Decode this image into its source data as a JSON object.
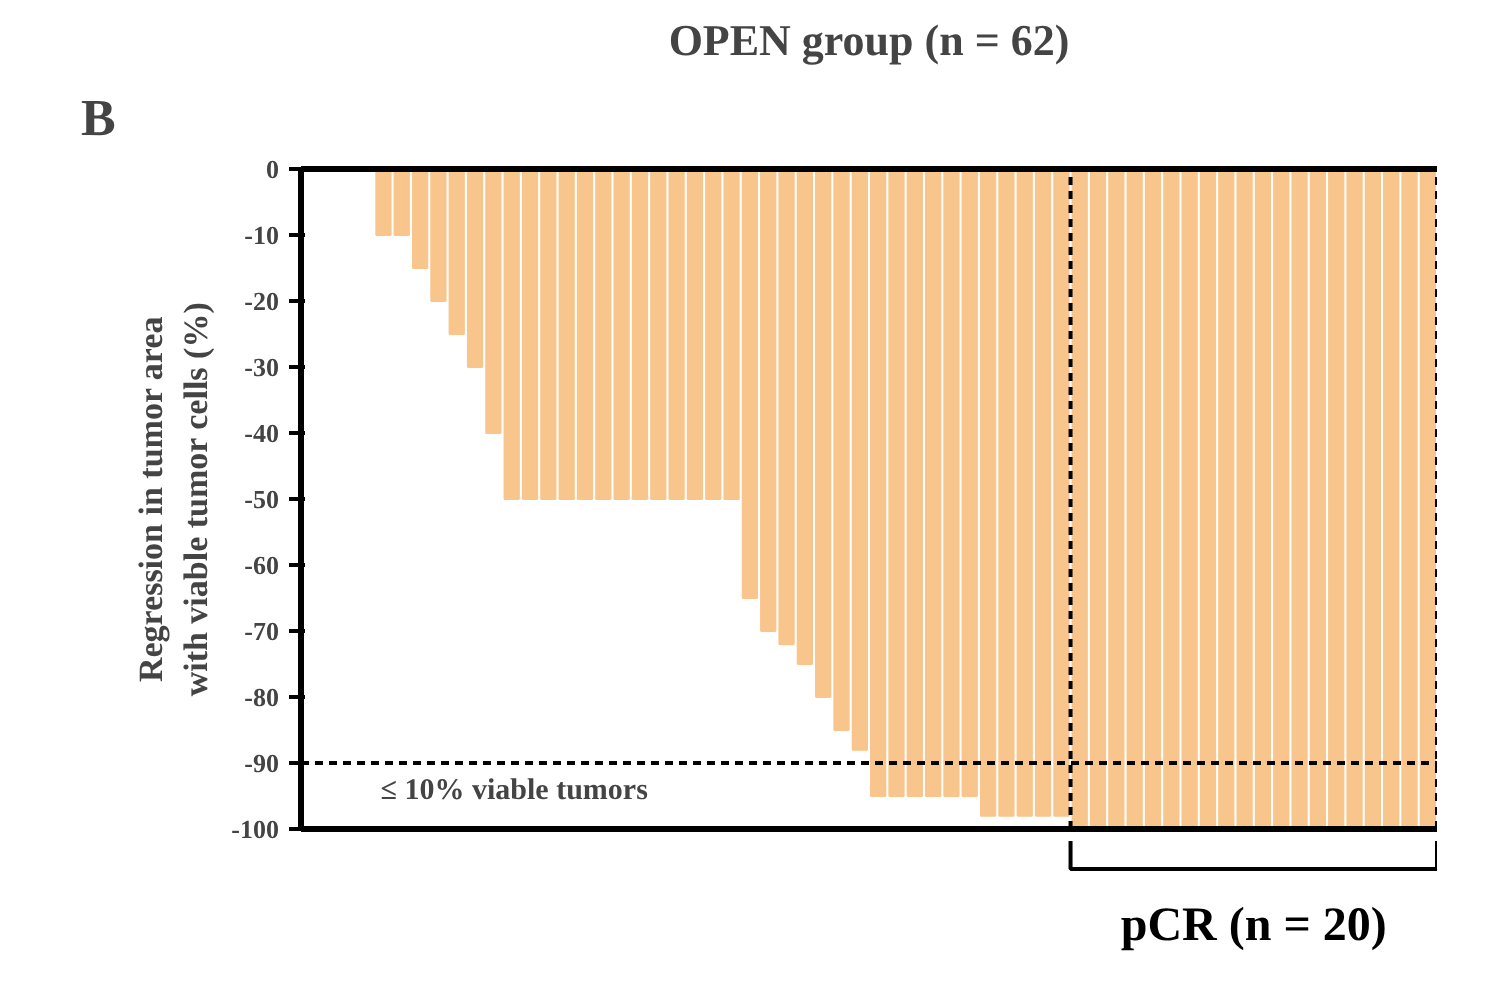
{
  "chart_data": {
    "type": "bar",
    "title": "OPEN group (n = 62)",
    "ylabel": "Regression in tumor area\nwith viable tumor cells (%)",
    "categories": [
      null,
      null,
      null,
      null,
      null,
      null,
      null,
      null,
      null,
      null,
      null,
      null,
      null,
      null,
      null,
      null,
      null,
      null,
      null,
      null,
      null,
      null,
      null,
      null,
      null,
      null,
      null,
      null,
      null,
      null,
      null,
      null,
      null,
      null,
      null,
      null,
      null,
      null,
      null,
      null,
      null,
      null,
      null,
      null,
      null,
      null,
      null,
      null,
      null,
      null,
      null,
      null,
      null,
      null,
      null,
      null,
      null,
      null,
      null,
      null,
      null,
      null
    ],
    "values": [
      0,
      0,
      0,
      0,
      -10,
      -10,
      -15,
      -20,
      -25,
      -30,
      -40,
      -50,
      -50,
      -50,
      -50,
      -50,
      -50,
      -50,
      -50,
      -50,
      -50,
      -50,
      -50,
      -50,
      -65,
      -70,
      -72,
      -75,
      -80,
      -85,
      -88,
      -95,
      -95,
      -95,
      -95,
      -95,
      -95,
      -98,
      -98,
      -98,
      -98,
      -98,
      -100,
      -100,
      -100,
      -100,
      -100,
      -100,
      -100,
      -100,
      -100,
      -100,
      -100,
      -100,
      -100,
      -100,
      -100,
      -100,
      -100,
      -100,
      -100,
      -100
    ],
    "color": "#f8c58c",
    "ylim": [
      -100,
      0
    ],
    "yticks": [
      0,
      -10,
      -20,
      -30,
      -40,
      -50,
      -60,
      -70,
      -80,
      -90,
      -100
    ],
    "tick_labels": "y",
    "grid": false,
    "ref_lines": [
      {
        "axis": "y",
        "value": -90,
        "label": "≤ 10% viable tumors",
        "line_style": "dashed"
      }
    ],
    "annotations": [
      "B",
      "pCR (n = 20)"
    ]
  }
}
